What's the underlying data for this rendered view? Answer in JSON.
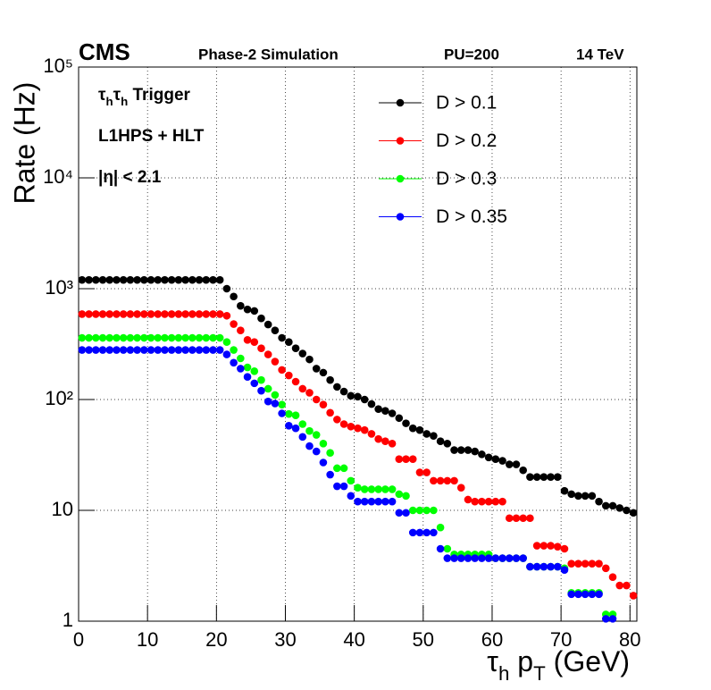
{
  "chart_data": {
    "type": "scatter",
    "experiment": "CMS",
    "header": [
      "Phase-2 Simulation",
      "PU=200",
      "14 TeV"
    ],
    "annotations": [
      {
        "parts": [
          {
            "text": "τ"
          },
          {
            "text": "h",
            "sub": true
          },
          {
            "text": "τ"
          },
          {
            "text": "h",
            "sub": true
          },
          {
            "text": " Trigger"
          }
        ]
      },
      {
        "parts": [
          {
            "text": "L1HPS + HLT"
          }
        ]
      },
      {
        "parts": [
          {
            "text": "|η| < 2.1"
          }
        ]
      }
    ],
    "ylabel": "Rate (Hz)",
    "xlabel": {
      "parts": [
        {
          "text": "τ"
        },
        {
          "text": "h",
          "sub": true
        },
        {
          "text": " p"
        },
        {
          "text": "T",
          "sub": true
        },
        {
          "text": " (GeV)"
        }
      ]
    },
    "x": [
      0.5,
      1.5,
      2.5,
      3.5,
      4.5,
      5.5,
      6.5,
      7.5,
      8.5,
      9.5,
      10.5,
      11.5,
      12.5,
      13.5,
      14.5,
      15.5,
      16.5,
      17.5,
      18.5,
      19.5,
      20.5,
      21.5,
      22.5,
      23.5,
      24.5,
      25.5,
      26.5,
      27.5,
      28.5,
      29.5,
      30.5,
      31.5,
      32.5,
      33.5,
      34.5,
      35.5,
      36.5,
      37.5,
      38.5,
      39.5,
      40.5,
      41.5,
      42.5,
      43.5,
      44.5,
      45.5,
      46.5,
      47.5,
      48.5,
      49.5,
      50.5,
      51.5,
      52.5,
      53.5,
      54.5,
      55.5,
      56.5,
      57.5,
      58.5,
      59.5,
      60.5,
      61.5,
      62.5,
      63.5,
      64.5,
      65.5,
      66.5,
      67.5,
      68.5,
      69.5,
      70.5,
      71.5,
      72.5,
      73.5,
      74.5,
      75.5,
      76.5,
      77.5,
      78.5,
      79.5,
      80.5
    ],
    "series": [
      {
        "name": "D > 0.1",
        "color": "#000000",
        "values": [
          1200,
          1200,
          1200,
          1200,
          1200,
          1200,
          1200,
          1200,
          1200,
          1200,
          1200,
          1200,
          1200,
          1200,
          1200,
          1200,
          1200,
          1200,
          1200,
          1200,
          1200,
          1000,
          850,
          700,
          650,
          630,
          540,
          475,
          420,
          360,
          330,
          290,
          260,
          230,
          190,
          175,
          150,
          130,
          118,
          108,
          106,
          100,
          91,
          82,
          79,
          75,
          68,
          61,
          55,
          53,
          49,
          47,
          42,
          40,
          35,
          35,
          35,
          34,
          32,
          30,
          29,
          28,
          26,
          26,
          23,
          20,
          20,
          20,
          20,
          20,
          15,
          14,
          13.5,
          13.5,
          13.5,
          12,
          11,
          11,
          10.5,
          10,
          9.5
        ]
      },
      {
        "name": "D > 0.2",
        "color": "#ff0000",
        "values": [
          590,
          590,
          590,
          590,
          590,
          590,
          590,
          590,
          590,
          590,
          590,
          590,
          590,
          590,
          590,
          590,
          590,
          590,
          590,
          590,
          590,
          570,
          480,
          420,
          345,
          330,
          290,
          255,
          220,
          185,
          165,
          145,
          125,
          115,
          100,
          90,
          76,
          66,
          60,
          57,
          55,
          53,
          49,
          44,
          42,
          40,
          29,
          29,
          29,
          22,
          22,
          18.5,
          18.5,
          18.5,
          18.5,
          16,
          12.5,
          12,
          12,
          12,
          12,
          12,
          8.5,
          8.5,
          8.5,
          8.5,
          4.8,
          4.8,
          4.8,
          4.7,
          4.5,
          3.3,
          3.3,
          3.3,
          3.3,
          3.3,
          3.0,
          2.5,
          2.1,
          2.1,
          1.7
        ]
      },
      {
        "name": "D > 0.3",
        "color": "#00ff00",
        "values": [
          360,
          360,
          360,
          360,
          360,
          360,
          360,
          360,
          360,
          360,
          360,
          360,
          360,
          360,
          360,
          360,
          360,
          360,
          360,
          360,
          360,
          330,
          280,
          235,
          195,
          180,
          150,
          125,
          110,
          90,
          74,
          72,
          60,
          52,
          48,
          40,
          33,
          24,
          24,
          18.5,
          16,
          15.5,
          15.5,
          15.5,
          15.5,
          15.5,
          14,
          13.5,
          10,
          10,
          10,
          10,
          7,
          4.5,
          4,
          4,
          4,
          4,
          4,
          4,
          3.7,
          3.7,
          3.7,
          3.7,
          3.7,
          3.1,
          3.1,
          3.1,
          3.1,
          3.1,
          3,
          1.8,
          1.8,
          1.8,
          1.8,
          1.8,
          1.15,
          1.15,
          null,
          null,
          null
        ]
      },
      {
        "name": "D > 0.35",
        "color": "#0000ff",
        "values": [
          280,
          280,
          280,
          280,
          280,
          280,
          280,
          280,
          280,
          280,
          280,
          280,
          280,
          280,
          280,
          280,
          280,
          280,
          280,
          280,
          280,
          255,
          215,
          190,
          160,
          140,
          120,
          96,
          92,
          75,
          58,
          55,
          46,
          38,
          34,
          27,
          21,
          16.5,
          16.5,
          13.5,
          12,
          12,
          12,
          12,
          12,
          12,
          9.5,
          9.5,
          6.3,
          6.3,
          6.3,
          6.3,
          4.5,
          3.7,
          3.7,
          3.7,
          3.7,
          3.7,
          3.7,
          3.7,
          3.7,
          3.7,
          3.7,
          3.7,
          3.7,
          3.1,
          3.1,
          3.1,
          3.1,
          3.1,
          2.9,
          1.75,
          1.75,
          1.75,
          1.75,
          1.75,
          1.05,
          1.05,
          null,
          null,
          null
        ]
      }
    ],
    "xlim": [
      0,
      81
    ],
    "xticks": [
      0,
      10,
      20,
      30,
      40,
      50,
      60,
      70,
      80
    ],
    "ylim": [
      1,
      100000
    ],
    "yticks": [
      1,
      10,
      {
        "value": 100,
        "label": "10²"
      },
      {
        "value": 1000,
        "label": "10³"
      },
      {
        "value": 10000,
        "label": "10⁴"
      },
      {
        "value": 100000,
        "label": "10⁵"
      }
    ],
    "ylog": true,
    "grid": true,
    "legend": "upper-right"
  }
}
